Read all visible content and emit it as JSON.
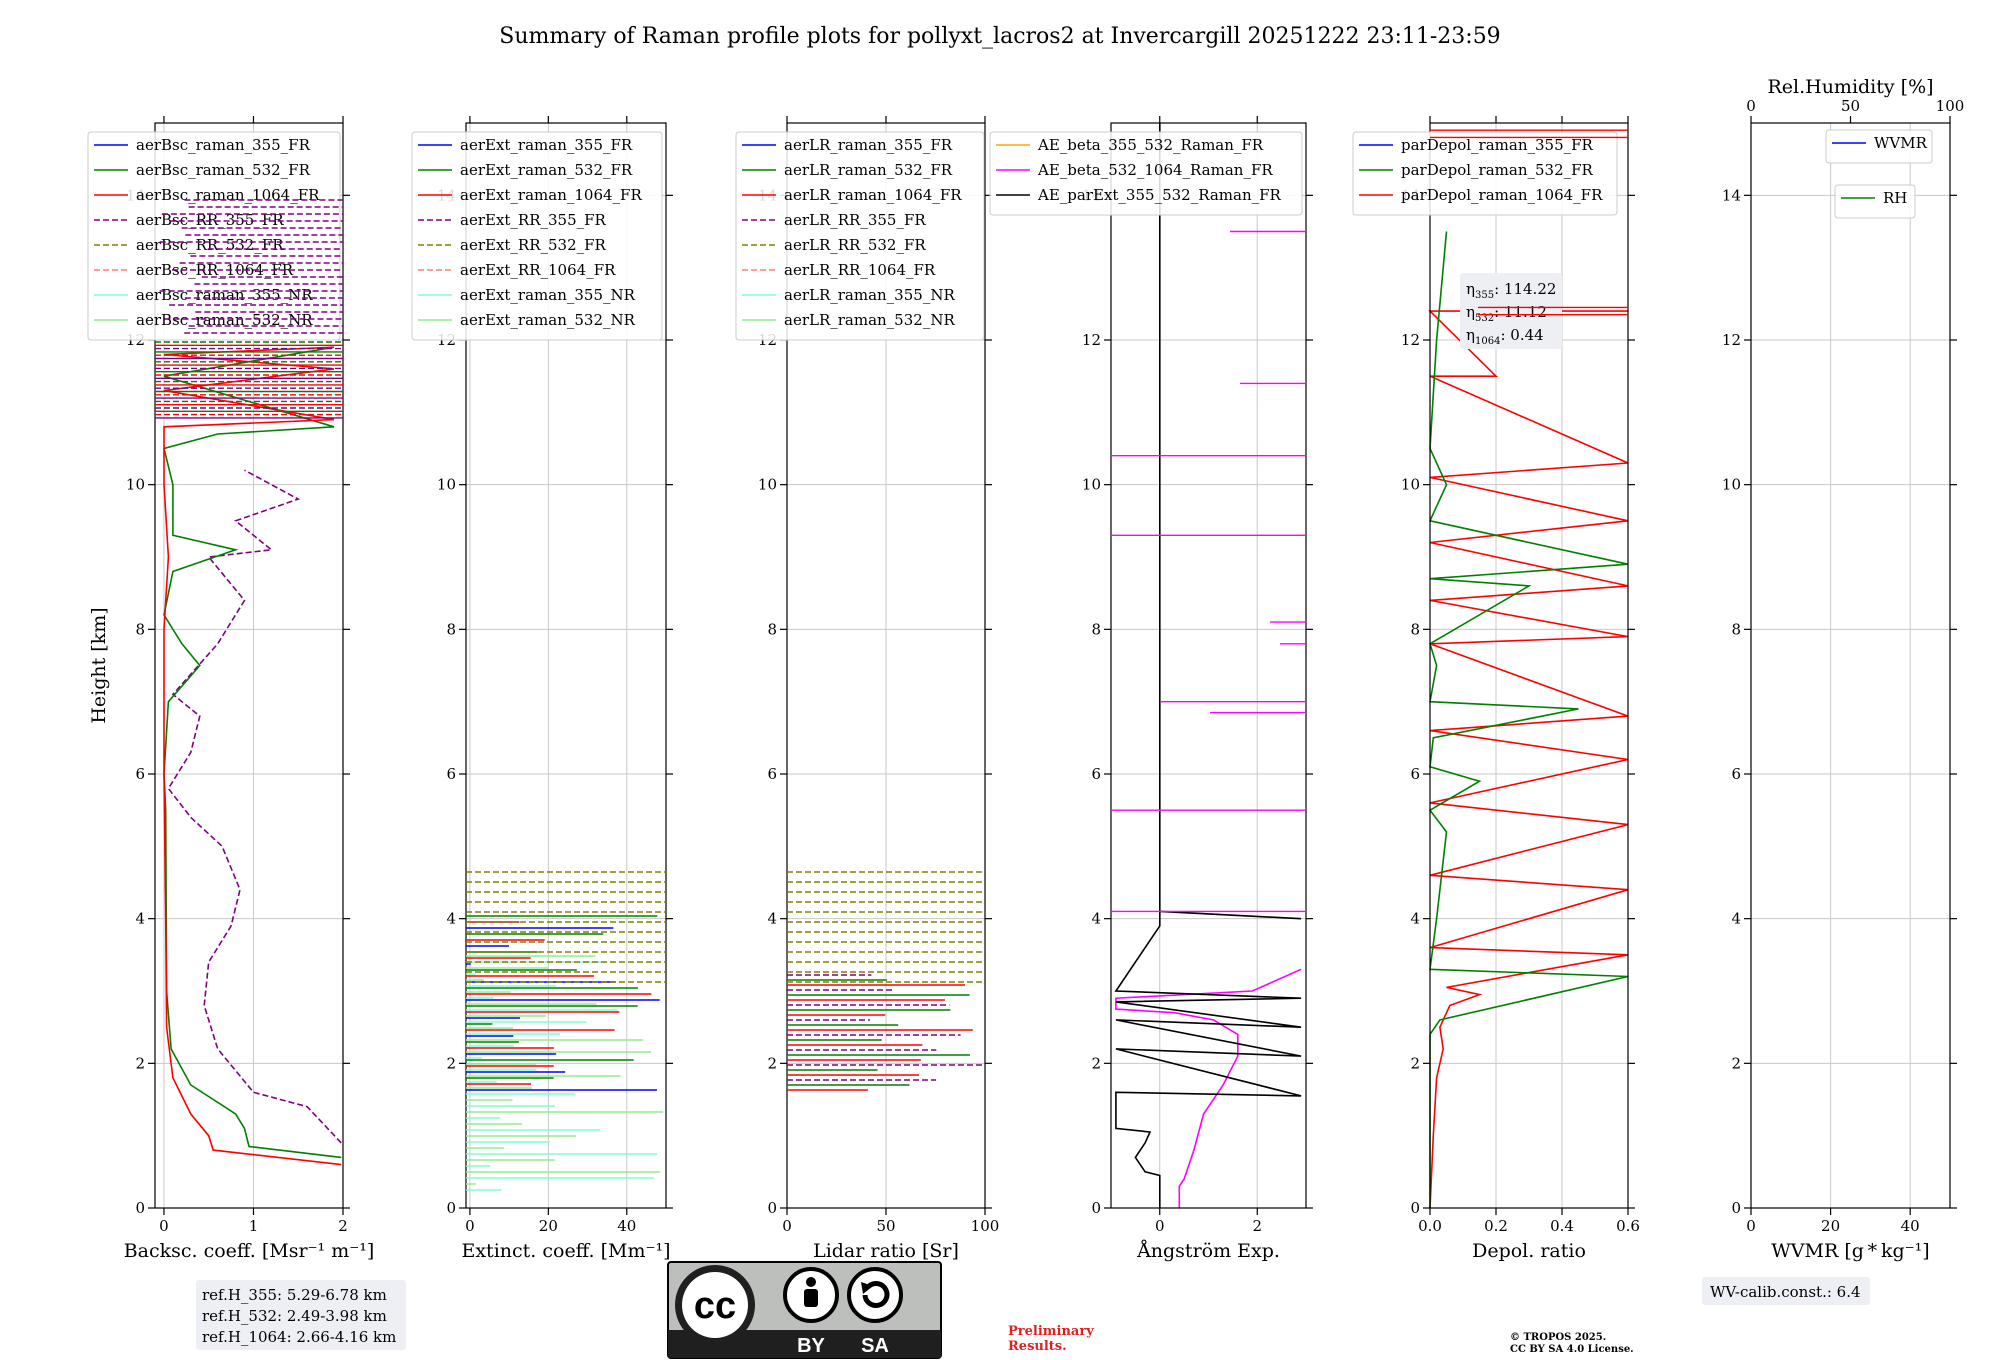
{
  "title": "Summary of Raman profile plots for pollyxt_lacros2 at Invercargill 20251222 23:11-23:59",
  "colors": {
    "blue": "#0000ff",
    "green": "#008000",
    "red": "#ff0000",
    "purple": "#800080",
    "olive": "#808000",
    "salmon": "#fa8072",
    "cyan": "#7fffd4",
    "lightgreen": "#90ee90",
    "orange": "#ffa500",
    "magenta": "#ff00ff",
    "black": "#000000"
  },
  "chart_data": [
    {
      "type": "line",
      "id": "bsc",
      "xlabel": "Backsc. coeff. [Msr⁻¹ m⁻¹]",
      "ylabel": "Height [km]",
      "xlim": [
        -0.1,
        2
      ],
      "ylim": [
        0,
        15
      ],
      "xticks": [
        0,
        1,
        2
      ],
      "xtick_labels": [
        "0",
        "1",
        "2"
      ],
      "yticks": [
        0,
        2,
        4,
        6,
        8,
        10,
        12,
        14
      ],
      "legend": [
        {
          "label": "aerBsc_raman_355_FR",
          "color": "blue",
          "style": "solid"
        },
        {
          "label": "aerBsc_raman_532_FR",
          "color": "green",
          "style": "solid"
        },
        {
          "label": "aerBsc_raman_1064_FR",
          "color": "red",
          "style": "solid"
        },
        {
          "label": "aerBsc_RR_355_FR",
          "color": "purple",
          "style": "dashed"
        },
        {
          "label": "aerBsc_RR_532_FR",
          "color": "olive",
          "style": "dashed"
        },
        {
          "label": "aerBsc_RR_1064_FR",
          "color": "salmon",
          "style": "dashed"
        },
        {
          "label": "aerBsc_raman_355_NR",
          "color": "cyan",
          "style": "solid"
        },
        {
          "label": "aerBsc_raman_532_NR",
          "color": "lightgreen",
          "style": "solid"
        }
      ],
      "series": [
        {
          "name": "aerBsc_RR_355_FR",
          "color": "purple",
          "style": "dashed",
          "points": [
            [
              1.98,
              0.9
            ],
            [
              1.6,
              1.4
            ],
            [
              1.0,
              1.6
            ],
            [
              0.6,
              2.2
            ],
            [
              0.45,
              2.8
            ],
            [
              0.5,
              3.4
            ],
            [
              0.75,
              3.9
            ],
            [
              0.85,
              4.4
            ],
            [
              0.65,
              5.0
            ],
            [
              0.3,
              5.4
            ],
            [
              0.05,
              5.8
            ],
            [
              0.3,
              6.3
            ],
            [
              0.4,
              6.8
            ],
            [
              0.1,
              7.1
            ],
            [
              0.6,
              7.8
            ],
            [
              0.9,
              8.4
            ],
            [
              0.5,
              9.0
            ],
            [
              1.2,
              9.1
            ],
            [
              0.8,
              9.5
            ],
            [
              1.5,
              9.8
            ],
            [
              0.9,
              10.2
            ]
          ]
        },
        {
          "name": "aerBsc_raman_532_FR",
          "color": "green",
          "style": "solid",
          "points": [
            [
              1.98,
              0.7
            ],
            [
              0.95,
              0.85
            ],
            [
              0.9,
              1.1
            ],
            [
              0.8,
              1.3
            ],
            [
              0.3,
              1.7
            ],
            [
              0.08,
              2.2
            ],
            [
              0.03,
              3.0
            ],
            [
              0.02,
              5.5
            ],
            [
              0.0,
              6.0
            ],
            [
              0.05,
              7.0
            ],
            [
              0.4,
              7.5
            ],
            [
              0.2,
              7.8
            ],
            [
              0.0,
              8.2
            ],
            [
              0.1,
              8.8
            ],
            [
              0.8,
              9.1
            ],
            [
              0.1,
              9.3
            ],
            [
              0.1,
              10.0
            ],
            [
              0.0,
              10.5
            ],
            [
              0.6,
              10.7
            ],
            [
              1.9,
              10.8
            ],
            [
              0.0,
              11.5
            ],
            [
              1.9,
              11.9
            ]
          ]
        },
        {
          "name": "aerBsc_raman_1064_FR",
          "color": "red",
          "style": "solid",
          "points": [
            [
              1.98,
              0.6
            ],
            [
              0.55,
              0.8
            ],
            [
              0.5,
              1.0
            ],
            [
              0.3,
              1.3
            ],
            [
              0.1,
              1.8
            ],
            [
              0.03,
              2.5
            ],
            [
              0.02,
              4.0
            ],
            [
              0.0,
              6.0
            ],
            [
              0.0,
              8.0
            ],
            [
              0.05,
              9.0
            ],
            [
              0.0,
              10.0
            ],
            [
              0.0,
              10.8
            ],
            [
              1.9,
              10.9
            ],
            [
              0.0,
              11.3
            ],
            [
              1.9,
              11.6
            ],
            [
              0.0,
              11.8
            ],
            [
              1.9,
              11.9
            ]
          ]
        }
      ],
      "annotation": [
        "ref.H_355: 5.29-6.78 km",
        "ref.H_532: 2.49-3.98 km",
        "ref.H_1064: 2.66-4.16 km"
      ]
    },
    {
      "type": "line",
      "id": "ext",
      "xlabel": "Extinct. coeff. [Mm⁻¹]",
      "xlim": [
        -1,
        50
      ],
      "ylim": [
        0,
        15
      ],
      "xticks": [
        0,
        20,
        40
      ],
      "xtick_labels": [
        "0",
        "20",
        "40"
      ],
      "yticks": [
        0,
        2,
        4,
        6,
        8,
        10,
        12,
        14
      ],
      "legend": [
        {
          "label": "aerExt_raman_355_FR",
          "color": "blue",
          "style": "solid"
        },
        {
          "label": "aerExt_raman_532_FR",
          "color": "green",
          "style": "solid"
        },
        {
          "label": "aerExt_raman_1064_FR",
          "color": "red",
          "style": "solid"
        },
        {
          "label": "aerExt_RR_355_FR",
          "color": "purple",
          "style": "dashed"
        },
        {
          "label": "aerExt_RR_532_FR",
          "color": "olive",
          "style": "dashed"
        },
        {
          "label": "aerExt_RR_1064_FR",
          "color": "salmon",
          "style": "dashed"
        },
        {
          "label": "aerExt_raman_355_NR",
          "color": "cyan",
          "style": "solid"
        },
        {
          "label": "aerExt_raman_532_NR",
          "color": "lightgreen",
          "style": "solid"
        }
      ]
    },
    {
      "type": "line",
      "id": "lr",
      "xlabel": "Lidar ratio [Sr]",
      "xlim": [
        0,
        100
      ],
      "ylim": [
        0,
        15
      ],
      "xticks": [
        0,
        50,
        100
      ],
      "xtick_labels": [
        "0",
        "50",
        "100"
      ],
      "yticks": [
        0,
        2,
        4,
        6,
        8,
        10,
        12,
        14
      ],
      "legend": [
        {
          "label": "aerLR_raman_355_FR",
          "color": "blue",
          "style": "solid"
        },
        {
          "label": "aerLR_raman_532_FR",
          "color": "green",
          "style": "solid"
        },
        {
          "label": "aerLR_raman_1064_FR",
          "color": "red",
          "style": "solid"
        },
        {
          "label": "aerLR_RR_355_FR",
          "color": "purple",
          "style": "dashed"
        },
        {
          "label": "aerLR_RR_532_FR",
          "color": "olive",
          "style": "dashed"
        },
        {
          "label": "aerLR_RR_1064_FR",
          "color": "salmon",
          "style": "dashed"
        },
        {
          "label": "aerLR_raman_355_NR",
          "color": "cyan",
          "style": "solid"
        },
        {
          "label": "aerLR_raman_532_NR",
          "color": "lightgreen",
          "style": "solid"
        }
      ]
    },
    {
      "type": "line",
      "id": "ae",
      "xlabel": "Ångström Exp.",
      "xlim": [
        -1,
        3
      ],
      "ylim": [
        0,
        15
      ],
      "xticks": [
        0,
        2
      ],
      "xtick_labels": [
        "0",
        "2"
      ],
      "yticks": [
        0,
        2,
        4,
        6,
        8,
        10,
        12,
        14
      ],
      "legend": [
        {
          "label": "AE_beta_355_532_Raman_FR",
          "color": "orange",
          "style": "solid"
        },
        {
          "label": "AE_beta_532_1064_Raman_FR",
          "color": "magenta",
          "style": "solid"
        },
        {
          "label": "AE_parExt_355_532_Raman_FR",
          "color": "black",
          "style": "solid"
        }
      ],
      "series": [
        {
          "name": "AE_beta_532_1064_Raman_FR",
          "color": "magenta",
          "style": "solid",
          "points": [
            [
              0.4,
              0.0
            ],
            [
              0.4,
              0.3
            ],
            [
              0.5,
              0.4
            ],
            [
              0.7,
              0.8
            ],
            [
              0.9,
              1.3
            ],
            [
              1.3,
              1.7
            ],
            [
              1.6,
              2.1
            ],
            [
              1.6,
              2.4
            ],
            [
              1.1,
              2.6
            ],
            [
              0.3,
              2.7
            ],
            [
              -0.9,
              2.75
            ],
            [
              -0.9,
              2.9
            ],
            [
              1.9,
              3.0
            ],
            [
              2.9,
              3.3
            ]
          ]
        },
        {
          "name": "AE_parExt_355_532_Raman_FR",
          "color": "black",
          "style": "solid",
          "points": [
            [
              0.0,
              0.0
            ],
            [
              0.0,
              0.45
            ],
            [
              -0.3,
              0.5
            ],
            [
              -0.5,
              0.7
            ],
            [
              -0.3,
              0.9
            ],
            [
              -0.2,
              1.05
            ],
            [
              -0.9,
              1.1
            ],
            [
              -0.9,
              1.6
            ],
            [
              2.9,
              1.55
            ],
            [
              -0.9,
              2.2
            ],
            [
              2.9,
              2.1
            ],
            [
              -0.9,
              2.6
            ],
            [
              2.9,
              2.5
            ],
            [
              -0.9,
              2.85
            ],
            [
              2.9,
              2.9
            ],
            [
              -0.9,
              3.0
            ],
            [
              0.0,
              3.9
            ],
            [
              0.0,
              4.1
            ],
            [
              2.9,
              4.0
            ],
            [
              0.0,
              4.1
            ],
            [
              0.0,
              15.0
            ]
          ]
        }
      ]
    },
    {
      "type": "line",
      "id": "depol",
      "xlabel": "Depol. ratio",
      "xlim": [
        0,
        0.6
      ],
      "ylim": [
        0,
        15
      ],
      "xticks": [
        0,
        0.2,
        0.4,
        0.6
      ],
      "xtick_labels": [
        "0.0",
        "0.2",
        "0.4",
        "0.6"
      ],
      "yticks": [
        0,
        2,
        4,
        6,
        8,
        10,
        12,
        14
      ],
      "legend": [
        {
          "label": "parDepol_raman_355_FR",
          "color": "blue",
          "style": "solid"
        },
        {
          "label": "parDepol_raman_532_FR",
          "color": "green",
          "style": "solid"
        },
        {
          "label": "parDepol_raman_1064_FR",
          "color": "red",
          "style": "solid"
        }
      ],
      "eta": [
        {
          "sub": "355",
          "value": "114.22"
        },
        {
          "sub": "532",
          "value": "11.12"
        },
        {
          "sub": "1064",
          "value": "0.44"
        }
      ],
      "series": [
        {
          "name": "parDepol_raman_1064_FR",
          "color": "red",
          "style": "solid",
          "points": [
            [
              0.0,
              0.0
            ],
            [
              0.01,
              1.0
            ],
            [
              0.02,
              1.8
            ],
            [
              0.04,
              2.2
            ],
            [
              0.03,
              2.5
            ],
            [
              0.06,
              2.8
            ],
            [
              0.15,
              2.95
            ],
            [
              0.05,
              3.05
            ],
            [
              0.6,
              3.5
            ],
            [
              0.0,
              3.6
            ],
            [
              0.6,
              4.4
            ],
            [
              0.0,
              4.6
            ],
            [
              0.6,
              5.3
            ],
            [
              0.0,
              5.6
            ],
            [
              0.6,
              6.2
            ],
            [
              0.0,
              6.6
            ],
            [
              0.6,
              6.8
            ],
            [
              0.0,
              7.8
            ],
            [
              0.6,
              7.9
            ],
            [
              0.0,
              8.4
            ],
            [
              0.6,
              8.6
            ],
            [
              0.0,
              9.2
            ],
            [
              0.6,
              9.5
            ],
            [
              0.0,
              10.1
            ],
            [
              0.6,
              10.3
            ],
            [
              0.0,
              11.5
            ],
            [
              0.2,
              11.5
            ],
            [
              0.0,
              12.4
            ],
            [
              0.6,
              12.4
            ]
          ]
        },
        {
          "name": "parDepol_raman_532_FR",
          "color": "green",
          "style": "solid",
          "points": [
            [
              0.0,
              0.0
            ],
            [
              0.0,
              2.4
            ],
            [
              0.03,
              2.6
            ],
            [
              0.6,
              3.2
            ],
            [
              0.0,
              3.3
            ],
            [
              0.02,
              4.0
            ],
            [
              0.05,
              5.2
            ],
            [
              0.0,
              5.5
            ],
            [
              0.15,
              5.9
            ],
            [
              0.0,
              6.1
            ],
            [
              0.01,
              6.5
            ],
            [
              0.45,
              6.9
            ],
            [
              0.0,
              7.0
            ],
            [
              0.02,
              7.5
            ],
            [
              0.0,
              7.8
            ],
            [
              0.3,
              8.6
            ],
            [
              0.0,
              8.7
            ],
            [
              0.6,
              8.9
            ],
            [
              0.0,
              9.5
            ],
            [
              0.05,
              10.0
            ],
            [
              0.0,
              10.5
            ],
            [
              0.02,
              12.0
            ],
            [
              0.05,
              13.5
            ]
          ]
        }
      ]
    },
    {
      "type": "line",
      "id": "wv",
      "xlabel": "WVMR [g * kg⁻¹]",
      "top_label": "Rel.Humidity [%]",
      "xlim": [
        0,
        50
      ],
      "ylim": [
        0,
        15
      ],
      "xticks": [
        0,
        20,
        40
      ],
      "xtick_labels": [
        "0",
        "20",
        "40"
      ],
      "top_ticks": [
        0,
        50,
        100
      ],
      "top_tick_labels": [
        "0",
        "50",
        "100"
      ],
      "yticks": [
        0,
        2,
        4,
        6,
        8,
        10,
        12,
        14
      ],
      "legend": [
        {
          "label": "WVMR",
          "color": "blue",
          "style": "solid"
        }
      ],
      "legend2": [
        {
          "label": "RH",
          "color": "green",
          "style": "solid"
        }
      ],
      "annotation": [
        "WV-calib.const.: 6.4"
      ]
    }
  ],
  "footer": {
    "cc_by": "BY",
    "cc_sa": "SA",
    "cc_text": "cc",
    "preliminary": [
      "Preliminary",
      "Results."
    ],
    "copyright": [
      "© TROPOS 2025.",
      "CC BY SA 4.0 License."
    ]
  }
}
